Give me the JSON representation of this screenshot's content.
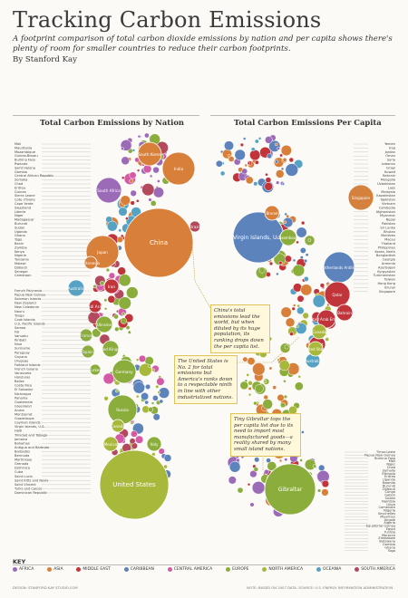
{
  "title": "Tracking Carbon Emissions",
  "subtitle": "A footprint comparison of total carbon dioxide emissions by nation and per capita shows there's plenty of room for smaller countries to reduce their carbon footprints.",
  "byline": "By Stanford Kay",
  "sections": {
    "left": "Total Carbon Emissions by Nation",
    "right": "Total Carbon Emissions Per Capita"
  },
  "regions": [
    {
      "name": "AFRICA",
      "color": "#9b6bb8"
    },
    {
      "name": "ASIA",
      "color": "#d8803a"
    },
    {
      "name": "MIDDLE EAST",
      "color": "#c0343a"
    },
    {
      "name": "CARIBBEAN",
      "color": "#5c83bc"
    },
    {
      "name": "CENTRAL AMERICA",
      "color": "#d55aa6"
    },
    {
      "name": "EUROPE",
      "color": "#8aad3c"
    },
    {
      "name": "NORTH AMERICA",
      "color": "#a8b83a"
    },
    {
      "name": "OCEANIA",
      "color": "#56a2c4"
    },
    {
      "name": "SOUTH AMERICA",
      "color": "#b3495c"
    }
  ],
  "key_label": "KEY",
  "left_bubbles": [
    {
      "label": "China",
      "region": "ASIA",
      "big": true
    },
    {
      "label": "United States",
      "region": "NORTH AMERICA",
      "big": true
    },
    {
      "label": "India",
      "region": "ASIA"
    },
    {
      "label": "Japan",
      "region": "ASIA"
    },
    {
      "label": "Russia",
      "region": "EUROPE"
    },
    {
      "label": "Germany",
      "region": "EUROPE"
    },
    {
      "label": "South Africa",
      "region": "AFRICA"
    },
    {
      "label": "South Korea",
      "region": "ASIA"
    },
    {
      "label": "Australia",
      "region": "OCEANIA"
    },
    {
      "label": "Iran",
      "region": "MIDDLE EAST"
    },
    {
      "label": "Saudi Arabia",
      "region": "MIDDLE EAST"
    },
    {
      "label": "Indonesia",
      "region": "ASIA"
    },
    {
      "label": "Ukraine",
      "region": "EUROPE"
    },
    {
      "label": "United Kingdom",
      "region": "EUROPE"
    },
    {
      "label": "France",
      "region": "EUROPE"
    },
    {
      "label": "Spain",
      "region": "EUROPE"
    },
    {
      "label": "Turkey",
      "region": "EUROPE"
    },
    {
      "label": "Italy",
      "region": "EUROPE"
    },
    {
      "label": "Mexico",
      "region": "NORTH AMERICA"
    },
    {
      "label": "Canada",
      "region": "NORTH AMERICA"
    },
    {
      "label": "Brazil",
      "region": "SOUTH AMERICA"
    }
  ],
  "right_bubbles": [
    {
      "label": "Singapore",
      "region": "ASIA"
    },
    {
      "label": "Virgin Islands, U.S.",
      "region": "CARIBBEAN",
      "big": true
    },
    {
      "label": "Netherlands Antilles",
      "region": "CARIBBEAN"
    },
    {
      "label": "Qatar",
      "region": "MIDDLE EAST"
    },
    {
      "label": "United Arab Emirates",
      "region": "MIDDLE EAST"
    },
    {
      "label": "Bahrain",
      "region": "MIDDLE EAST"
    },
    {
      "label": "Kuwait",
      "region": "MIDDLE EAST"
    },
    {
      "label": "Brunei",
      "region": "ASIA"
    },
    {
      "label": "Canada",
      "region": "NORTH AMERICA"
    },
    {
      "label": "Australia",
      "region": "OCEANIA"
    },
    {
      "label": "United States",
      "region": "NORTH AMERICA"
    },
    {
      "label": "Luxembourg",
      "region": "EUROPE"
    },
    {
      "label": "Gibraltar",
      "region": "EUROPE",
      "big": true
    }
  ],
  "notes": [
    {
      "text": "China's total emissions lead the world, but when diluted by its huge population, its ranking drops down the per capita list."
    },
    {
      "text": "The United States is No. 2 for total emissions but America's ranks down to a respectable ninth in line with other industrialized nations."
    },
    {
      "text": "Tiny Gibraltar tops the per capita list due to its need to import most manufactured goods—a reality shared by many small island nations."
    }
  ],
  "left_labels": [
    "Mali",
    "Mauritania",
    "Mozambique",
    "Guinea-Bissau",
    "Burkina Faso",
    "Rwanda",
    "Saint Helena",
    "Gambia",
    "Central African Republic",
    "Somalia",
    "Chad",
    "Eritrea",
    "Guinea",
    "Sierra Leone",
    "Cote d'Ivoire",
    "Cape Verde",
    "Swaziland",
    "Liberia",
    "Niger",
    "Madagascar",
    "Burundi",
    "Sudan",
    "Uganda",
    "Ghana",
    "Togo",
    "Benin",
    "Zambia",
    "Kenya",
    "Nigeria",
    "Tanzania",
    "Malawi",
    "Djibouti",
    "Senegal",
    "Cameroon",
    "French Polynesia",
    "Papua New Guinea",
    "Solomon Islands",
    "New Zealand",
    "New Caledonia",
    "Nauru",
    "Tonga",
    "Cook Islands",
    "U.S. Pacific Islands",
    "Samoa",
    "Fiji",
    "Vanuatu",
    "Kiribati",
    "Niue",
    "Suriname",
    "Paraguay",
    "Guyana",
    "Uruguay",
    "Falkland Islands",
    "French Guiana",
    "Venezuela",
    "Honduras",
    "Belize",
    "Costa Rica",
    "El Salvador",
    "Nicaragua",
    "Panama",
    "Guatemala",
    "Greenland",
    "Aruba",
    "Montserrat",
    "Guadeloupe",
    "Cayman Islands",
    "Virgin Islands, U.S.",
    "Haiti",
    "Trinidad and Tobago",
    "Jamaica",
    "Bahamas",
    "Antigua and Barbuda",
    "Barbados",
    "Bermuda",
    "Martinique",
    "Grenada",
    "Dominica",
    "Cuba",
    "Saint Lucia",
    "Saint Kitts and Nevis",
    "Saint Vincent",
    "Turks and Caicos",
    "Dominican Republic"
  ],
  "right_labels": [
    "Yemen",
    "Iraq",
    "Jordan",
    "Oman",
    "Syria",
    "Lebanon",
    "Israel",
    "Kuwait",
    "Bahrain",
    "Mongolia",
    "Uzbekistan",
    "Laos",
    "Malaysia",
    "Kazakhstan",
    "Tajikistan",
    "Vietnam",
    "Cambodia",
    "Afghanistan",
    "Myanmar",
    "Nepal",
    "Pakistan",
    "Sri Lanka",
    "Bhutan",
    "Maldives",
    "Macau",
    "Thailand",
    "Philippines",
    "Korea, North",
    "Bangladesh",
    "Georgia",
    "Armenia",
    "Azerbaijan",
    "Kyrgyzstan",
    "Turkmenistan",
    "Taiwan",
    "Hong Kong",
    "Brunei",
    "Singapore",
    "Timor-Leste",
    "Papua New Guinea",
    "Burkina Faso",
    "Mali",
    "Niger",
    "Chad",
    "Somalia",
    "Ethiopia",
    "Eritrea",
    "Uganda",
    "Rwanda",
    "Burundi",
    "Djibouti",
    "Congo",
    "Gabon",
    "Sudan",
    "Namibia",
    "Libya",
    "Cameroon",
    "Nigeria",
    "Seychelles",
    "Mauritius",
    "Angola",
    "Algeria",
    "Equatorial Guinea",
    "Egypt",
    "Tunisia",
    "Morocco",
    "Zimbabwe",
    "Botswana",
    "Gambia",
    "Ghana",
    "Togo"
  ],
  "footer": {
    "left": "DESIGN: STANFORD KAY STUDIO.COM",
    "right": "NOTE: BASED ON 2007 DATA. SOURCE: U.S. ENERGY INFORMATION ADMINISTRATION"
  }
}
